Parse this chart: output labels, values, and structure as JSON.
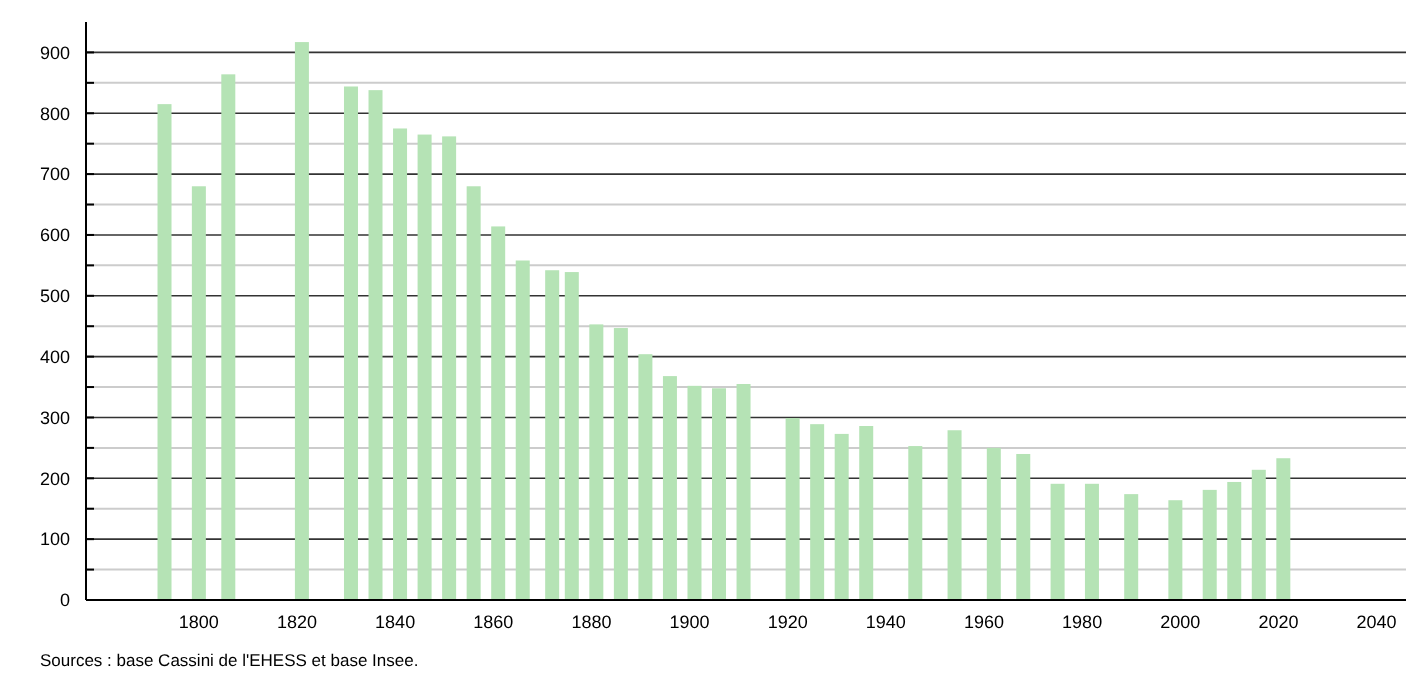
{
  "chart_data": {
    "type": "bar",
    "x": [
      1793,
      1800,
      1806,
      1821,
      1831,
      1836,
      1841,
      1846,
      1851,
      1856,
      1861,
      1866,
      1872,
      1876,
      1881,
      1886,
      1891,
      1896,
      1901,
      1906,
      1911,
      1921,
      1926,
      1931,
      1936,
      1946,
      1954,
      1962,
      1968,
      1975,
      1982,
      1990,
      1999,
      2006,
      2011,
      2016,
      2021
    ],
    "values": [
      815,
      680,
      864,
      917,
      844,
      838,
      775,
      765,
      762,
      680,
      614,
      558,
      542,
      539,
      453,
      447,
      404,
      368,
      352,
      348,
      355,
      299,
      289,
      273,
      286,
      253,
      279,
      250,
      240,
      191,
      191,
      174,
      164,
      181,
      194,
      214,
      233
    ],
    "color": "#b5e3b5",
    "xlim": [
      1777,
      2046
    ],
    "xticks": [
      1800,
      1820,
      1840,
      1860,
      1880,
      1900,
      1920,
      1940,
      1960,
      1980,
      2000,
      2020,
      2040
    ],
    "ylim": [
      0,
      950
    ],
    "yticks": [
      0,
      {
        "value": 50,
        "label": null
      },
      100,
      {
        "value": 150,
        "label": null
      },
      200,
      {
        "value": 250,
        "label": null
      },
      300,
      {
        "value": 350,
        "label": null
      },
      400,
      {
        "value": 450,
        "label": null
      },
      500,
      {
        "value": 550,
        "label": null
      },
      600,
      {
        "value": 650,
        "label": null
      },
      700,
      {
        "value": 750,
        "label": null
      },
      800,
      {
        "value": 850,
        "label": null
      },
      900
    ],
    "grid": true,
    "legend": false,
    "annotations": [
      "Sources : base Cassini de l'EHESS et base Insee."
    ]
  }
}
